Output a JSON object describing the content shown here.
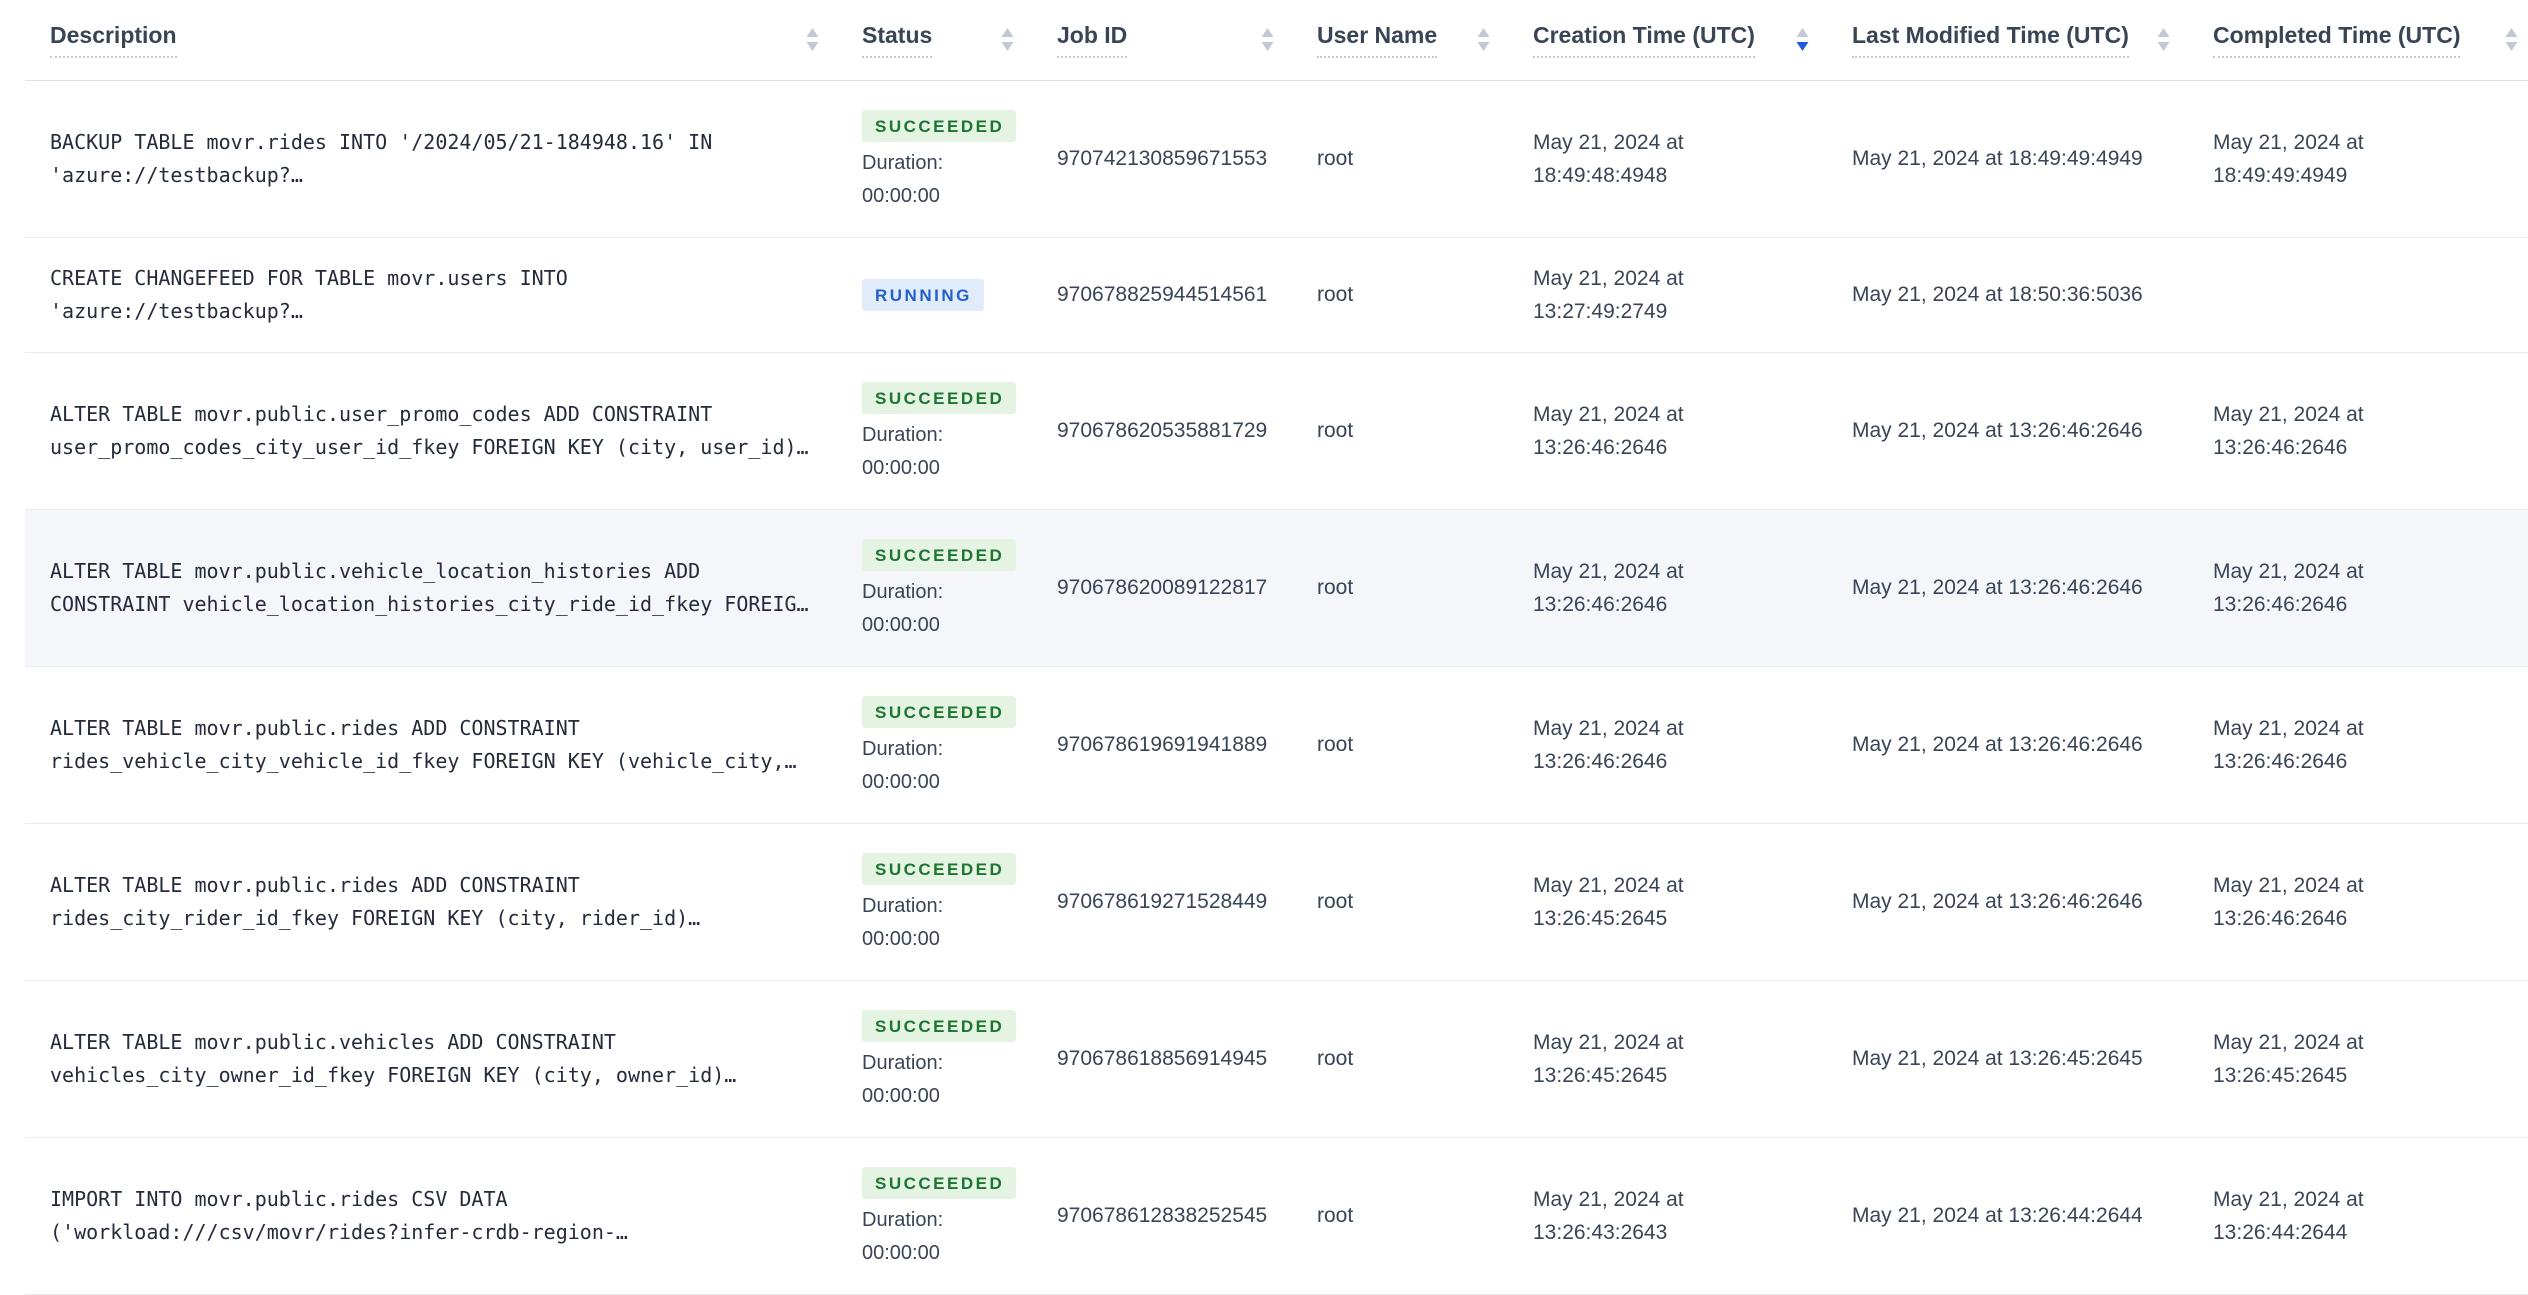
{
  "header": {
    "columns": [
      {
        "label": "Description",
        "name": "description",
        "sorted": "none"
      },
      {
        "label": "Status",
        "name": "status",
        "sorted": "none"
      },
      {
        "label": "Job ID",
        "name": "job-id",
        "sorted": "none"
      },
      {
        "label": "User Name",
        "name": "user-name",
        "sorted": "none"
      },
      {
        "label": "Creation Time (UTC)",
        "name": "creation-time-utc",
        "sorted": "desc"
      },
      {
        "label": "Last Modified Time (UTC)",
        "name": "last-modified-time-utc",
        "sorted": "none"
      },
      {
        "label": "Completed Time (UTC)",
        "name": "completed-time-utc",
        "sorted": "none"
      }
    ]
  },
  "rows": [
    {
      "description": "BACKUP TABLE movr.rides INTO '/2024/05/21-184948.16' IN 'azure://testbackup?…",
      "status": "SUCCEEDED",
      "duration_label": "Duration:",
      "duration_value": "00:00:00",
      "job_id": "970742130859671553",
      "user_name": "root",
      "creation_time": "May 21, 2024 at 18:49:48:4948",
      "last_modified_time": "May 21, 2024 at 18:49:49:4949",
      "completed_time": "May 21, 2024 at 18:49:49:4949",
      "highlighted": false
    },
    {
      "description": "CREATE CHANGEFEED FOR TABLE movr.users INTO 'azure://testbackup?…",
      "status": "RUNNING",
      "duration_label": null,
      "duration_value": null,
      "job_id": "970678825944514561",
      "user_name": "root",
      "creation_time": "May 21, 2024 at 13:27:49:2749",
      "last_modified_time": "May 21, 2024 at 18:50:36:5036",
      "completed_time": "",
      "highlighted": false
    },
    {
      "description": "ALTER TABLE movr.public.user_promo_codes ADD CONSTRAINT user_promo_codes_city_user_id_fkey FOREIGN KEY (city, user_id)…",
      "status": "SUCCEEDED",
      "duration_label": "Duration:",
      "duration_value": "00:00:00",
      "job_id": "970678620535881729",
      "user_name": "root",
      "creation_time": "May 21, 2024 at 13:26:46:2646",
      "last_modified_time": "May 21, 2024 at 13:26:46:2646",
      "completed_time": "May 21, 2024 at 13:26:46:2646",
      "highlighted": false
    },
    {
      "description": "ALTER TABLE movr.public.vehicle_location_histories ADD CONSTRAINT vehicle_location_histories_city_ride_id_fkey FOREIG…",
      "status": "SUCCEEDED",
      "duration_label": "Duration:",
      "duration_value": "00:00:00",
      "job_id": "970678620089122817",
      "user_name": "root",
      "creation_time": "May 21, 2024 at 13:26:46:2646",
      "last_modified_time": "May 21, 2024 at 13:26:46:2646",
      "completed_time": "May 21, 2024 at 13:26:46:2646",
      "highlighted": true
    },
    {
      "description": "ALTER TABLE movr.public.rides ADD CONSTRAINT rides_vehicle_city_vehicle_id_fkey FOREIGN KEY (vehicle_city,…",
      "status": "SUCCEEDED",
      "duration_label": "Duration:",
      "duration_value": "00:00:00",
      "job_id": "970678619691941889",
      "user_name": "root",
      "creation_time": "May 21, 2024 at 13:26:46:2646",
      "last_modified_time": "May 21, 2024 at 13:26:46:2646",
      "completed_time": "May 21, 2024 at 13:26:46:2646",
      "highlighted": false
    },
    {
      "description": "ALTER TABLE movr.public.rides ADD CONSTRAINT rides_city_rider_id_fkey FOREIGN KEY (city, rider_id)…",
      "status": "SUCCEEDED",
      "duration_label": "Duration:",
      "duration_value": "00:00:00",
      "job_id": "970678619271528449",
      "user_name": "root",
      "creation_time": "May 21, 2024 at 13:26:45:2645",
      "last_modified_time": "May 21, 2024 at 13:26:46:2646",
      "completed_time": "May 21, 2024 at 13:26:46:2646",
      "highlighted": false
    },
    {
      "description": "ALTER TABLE movr.public.vehicles ADD CONSTRAINT vehicles_city_owner_id_fkey FOREIGN KEY (city, owner_id)…",
      "status": "SUCCEEDED",
      "duration_label": "Duration:",
      "duration_value": "00:00:00",
      "job_id": "970678618856914945",
      "user_name": "root",
      "creation_time": "May 21, 2024 at 13:26:45:2645",
      "last_modified_time": "May 21, 2024 at 13:26:45:2645",
      "completed_time": "May 21, 2024 at 13:26:45:2645",
      "highlighted": false
    },
    {
      "description": "IMPORT INTO movr.public.rides CSV DATA ('workload:///csv/movr/rides?infer-crdb-region-…",
      "status": "SUCCEEDED",
      "duration_label": "Duration:",
      "duration_value": "00:00:00",
      "job_id": "970678612838252545",
      "user_name": "root",
      "creation_time": "May 21, 2024 at 13:26:43:2643",
      "last_modified_time": "May 21, 2024 at 13:26:44:2644",
      "completed_time": "May 21, 2024 at 13:26:44:2644",
      "highlighted": false
    }
  ],
  "status_styles": {
    "SUCCEEDED": {
      "bg": "#e5f3e2",
      "fg": "#1c7530"
    },
    "RUNNING": {
      "bg": "#e1ecfb",
      "fg": "#215fca"
    }
  },
  "sort_icon_colors": {
    "inactive": "#c2c9d6",
    "active": "#2458e4"
  }
}
